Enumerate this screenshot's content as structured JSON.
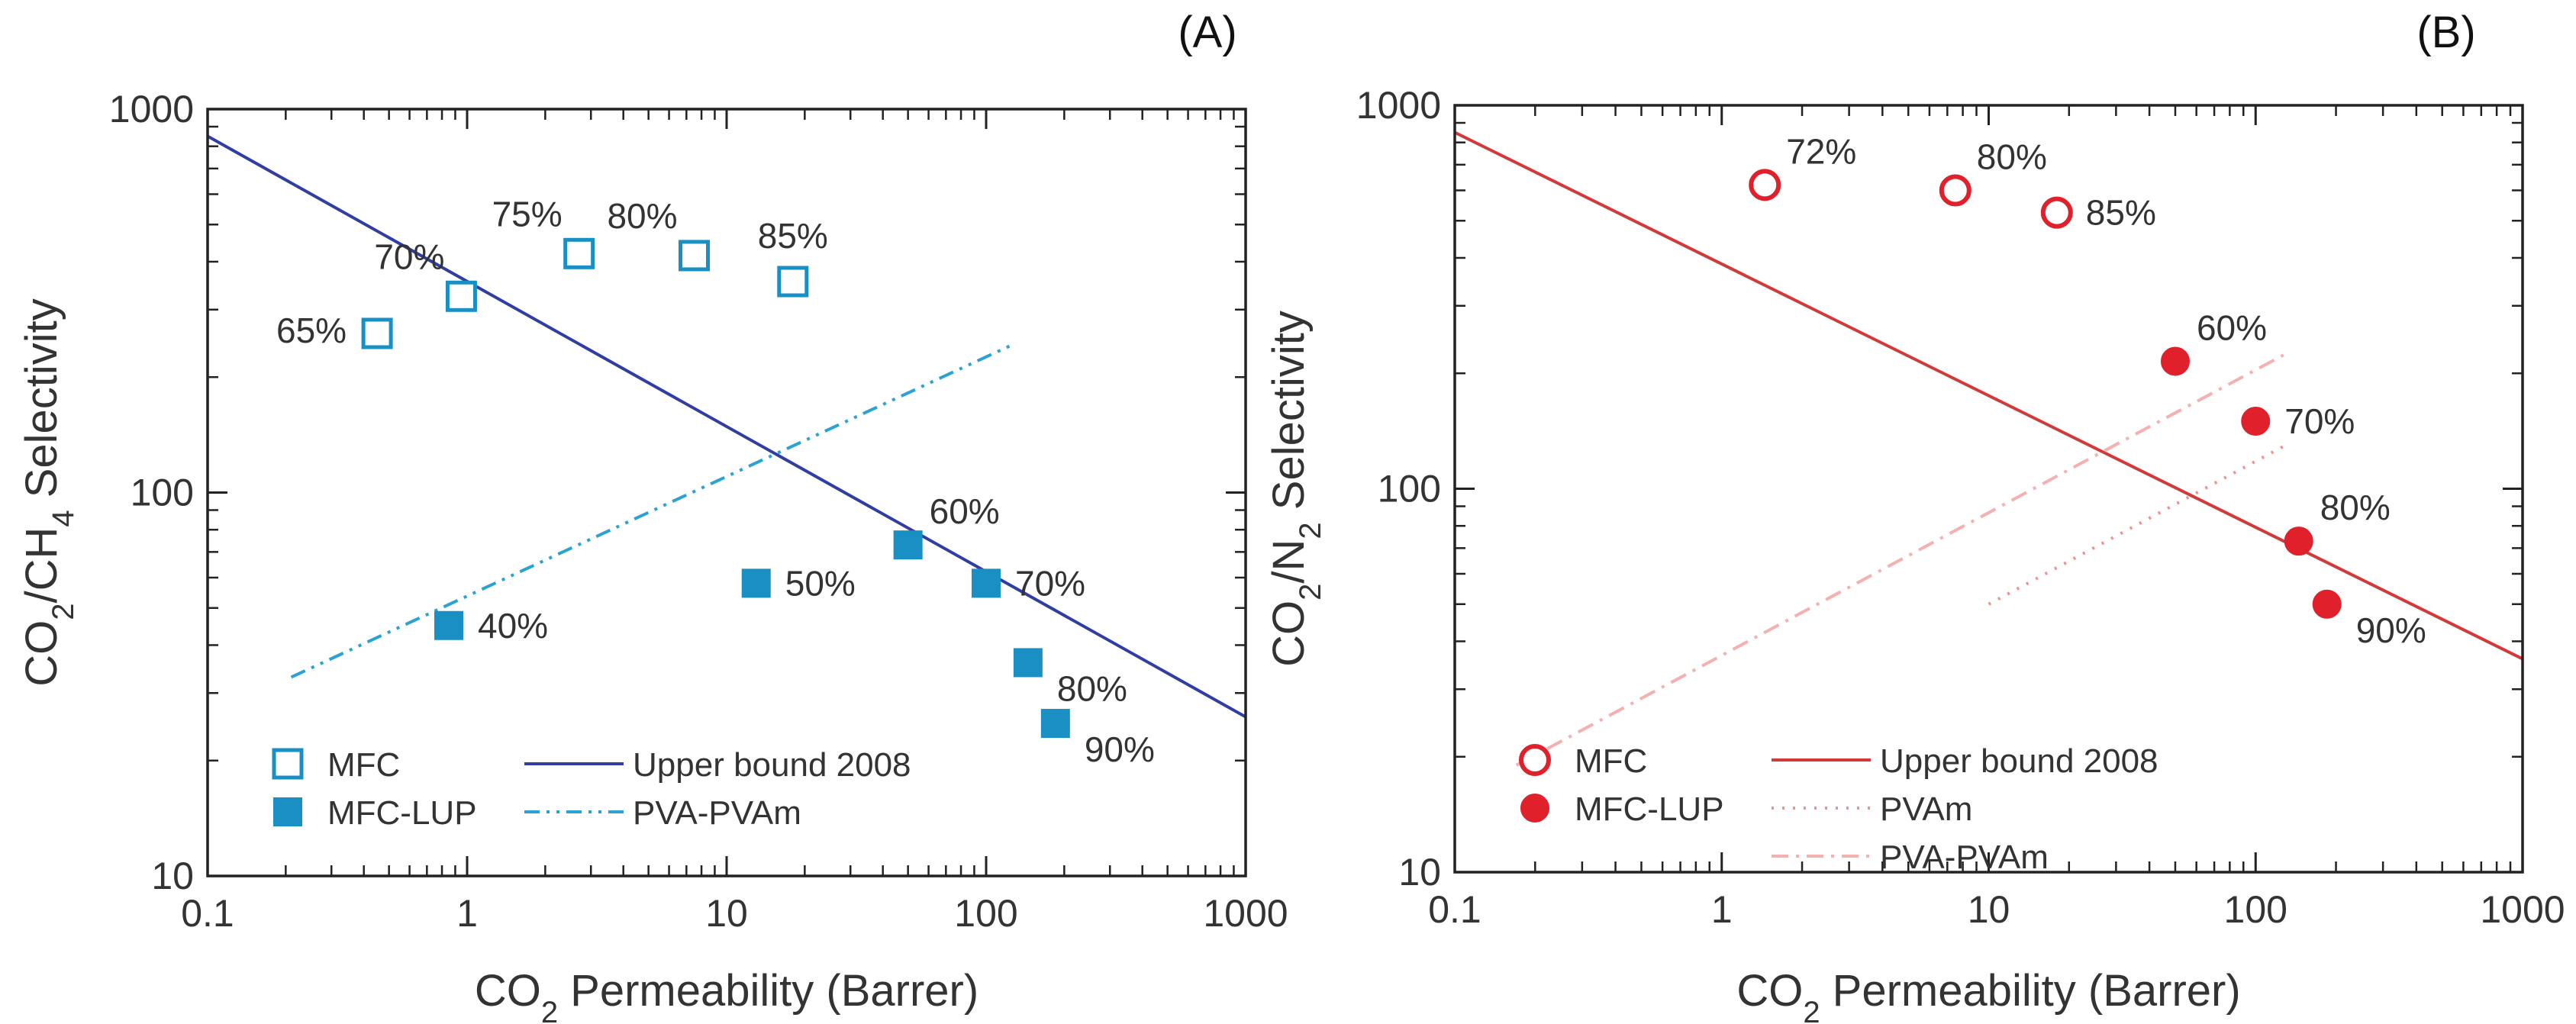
{
  "chart_data": [
    {
      "type": "scatter",
      "panel_label": "(A)",
      "xlabel": {
        "main": "CO",
        "sub": "2",
        "rest": " Permeability (Barrer)"
      },
      "ylabel": {
        "parts": [
          [
            "CO",
            false
          ],
          [
            "2",
            true
          ],
          [
            "/CH",
            false
          ],
          [
            "4",
            true
          ],
          [
            " Selectivity",
            false
          ]
        ]
      },
      "x_scale": "log",
      "y_scale": "log",
      "xlim": [
        0.1,
        1000
      ],
      "ylim": [
        10,
        1000
      ],
      "x_ticks": [
        {
          "v": 0.1,
          "label": "0.1"
        },
        {
          "v": 1,
          "label": "1"
        },
        {
          "v": 10,
          "label": "10"
        },
        {
          "v": 100,
          "label": "100"
        },
        {
          "v": 1000,
          "label": "1000"
        }
      ],
      "y_ticks": [
        {
          "v": 10,
          "label": "10"
        },
        {
          "v": 100,
          "label": "100"
        },
        {
          "v": 1000,
          "label": "1000"
        }
      ],
      "series": [
        {
          "name": "MFC",
          "marker": "square-open",
          "color": "#1a8fc4",
          "points": [
            {
              "x": 0.45,
              "y": 260,
              "label": "65%",
              "label_pos": "left"
            },
            {
              "x": 0.95,
              "y": 325,
              "label": "70%",
              "label_pos": "up-left"
            },
            {
              "x": 2.7,
              "y": 420,
              "label": "75%",
              "label_pos": "up-left"
            },
            {
              "x": 7.5,
              "y": 415,
              "label": "80%",
              "label_pos": "up-left"
            },
            {
              "x": 18,
              "y": 355,
              "label": "85%",
              "label_pos": "up"
            }
          ]
        },
        {
          "name": "MFC-LUP",
          "marker": "square-filled",
          "color": "#1a8fc4",
          "points": [
            {
              "x": 0.85,
              "y": 45,
              "label": "40%",
              "label_pos": "right"
            },
            {
              "x": 13,
              "y": 58,
              "label": "50%",
              "label_pos": "right"
            },
            {
              "x": 50,
              "y": 73,
              "label": "60%",
              "label_pos": "up-right"
            },
            {
              "x": 100,
              "y": 58,
              "label": "70%",
              "label_pos": "right"
            },
            {
              "x": 145,
              "y": 36,
              "label": "80%",
              "label_pos": "down-right"
            },
            {
              "x": 185,
              "y": 25,
              "label": "90%",
              "label_pos": "down-right"
            }
          ]
        }
      ],
      "lines": [
        {
          "name": "Upper bound 2008",
          "style": "solid",
          "color": "#2f3ea0",
          "points": [
            [
              0.1,
              850
            ],
            [
              1000,
              26
            ]
          ]
        },
        {
          "name": "PVA-PVAm",
          "style": "dashdotdot",
          "color": "#2aa3d3",
          "points": [
            [
              0.21,
              33
            ],
            [
              130,
              245
            ]
          ]
        }
      ],
      "legend": [
        {
          "label": "MFC",
          "kind": "square-open",
          "color": "#1a8fc4"
        },
        {
          "label": "MFC-LUP",
          "kind": "square-filled",
          "color": "#1a8fc4"
        },
        {
          "label": "Upper bound 2008",
          "kind": "solid",
          "color": "#2f3ea0"
        },
        {
          "label": "PVA-PVAm",
          "kind": "dashdotdot",
          "color": "#2aa3d3"
        }
      ],
      "legend_position": "bottom-left"
    },
    {
      "type": "scatter",
      "panel_label": "(B)",
      "xlabel": {
        "main": "CO",
        "sub": "2",
        "rest": " Permeability (Barrer)"
      },
      "ylabel": {
        "parts": [
          [
            "CO",
            false
          ],
          [
            "2",
            true
          ],
          [
            "/N",
            false
          ],
          [
            "2",
            true
          ],
          [
            " Selectivity",
            false
          ]
        ]
      },
      "x_scale": "log",
      "y_scale": "log",
      "xlim": [
        0.1,
        1000
      ],
      "ylim": [
        10,
        1000
      ],
      "x_ticks": [
        {
          "v": 0.1,
          "label": "0.1"
        },
        {
          "v": 1,
          "label": "1"
        },
        {
          "v": 10,
          "label": "10"
        },
        {
          "v": 100,
          "label": "100"
        },
        {
          "v": 1000,
          "label": "1000"
        }
      ],
      "y_ticks": [
        {
          "v": 10,
          "label": "10"
        },
        {
          "v": 100,
          "label": "100"
        },
        {
          "v": 1000,
          "label": "1000"
        }
      ],
      "series": [
        {
          "name": "MFC",
          "marker": "circle-open",
          "color": "#e0202a",
          "points": [
            {
              "x": 1.45,
              "y": 620,
              "label": "72%",
              "label_pos": "up-right"
            },
            {
              "x": 7.5,
              "y": 600,
              "label": "80%",
              "label_pos": "up-right"
            },
            {
              "x": 18,
              "y": 525,
              "label": "85%",
              "label_pos": "right"
            }
          ]
        },
        {
          "name": "MFC-LUP",
          "marker": "circle-filled",
          "color": "#e0202a",
          "points": [
            {
              "x": 50,
              "y": 215,
              "label": "60%",
              "label_pos": "up-right"
            },
            {
              "x": 100,
              "y": 150,
              "label": "70%",
              "label_pos": "right"
            },
            {
              "x": 145,
              "y": 73,
              "label": "80%",
              "label_pos": "up-right"
            },
            {
              "x": 185,
              "y": 50,
              "label": "90%",
              "label_pos": "down-right"
            }
          ]
        }
      ],
      "lines": [
        {
          "name": "Upper bound 2008",
          "style": "solid",
          "color": "#d23a3a",
          "points": [
            [
              0.1,
              850
            ],
            [
              1000,
              36
            ]
          ]
        },
        {
          "name": "PVAm",
          "style": "dotted",
          "color": "#f09090",
          "points": [
            [
              10,
              50
            ],
            [
              130,
              130
            ]
          ]
        },
        {
          "name": "PVA-PVAm",
          "style": "dashdot",
          "color": "#f5b0b0",
          "points": [
            [
              0.17,
              19
            ],
            [
              130,
              225
            ]
          ]
        }
      ],
      "legend": [
        {
          "label": "MFC",
          "kind": "circle-open",
          "color": "#e0202a"
        },
        {
          "label": "MFC-LUP",
          "kind": "circle-filled",
          "color": "#e0202a"
        },
        {
          "label": "Upper bound 2008",
          "kind": "solid",
          "color": "#d23a3a"
        },
        {
          "label": "PVAm",
          "kind": "dotted",
          "color": "#f09090"
        },
        {
          "label": "PVA-PVAm",
          "kind": "dashdot",
          "color": "#f5b0b0"
        }
      ],
      "legend_position": "bottom-left"
    }
  ]
}
